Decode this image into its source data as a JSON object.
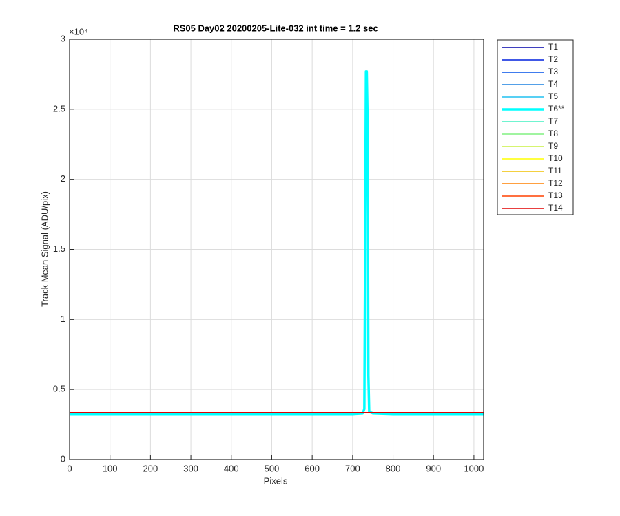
{
  "chart_data": {
    "type": "line",
    "title": "RS05 Day02 20200205-Lite-032 int time = 1.2 sec",
    "x_label": "Pixels",
    "y_label": "Track Mean Signal (ADU/pix)",
    "y_multiplier_label": "×10⁴",
    "xlim": [
      0,
      1024
    ],
    "ylim": [
      0,
      3
    ],
    "xticks": [
      0,
      100,
      200,
      300,
      400,
      500,
      600,
      700,
      800,
      900,
      1000
    ],
    "yticks": [
      0,
      0.5,
      1,
      1.5,
      2,
      2.5,
      3
    ],
    "grid": true,
    "legend": "outside-right",
    "x": [
      0,
      100,
      200,
      300,
      400,
      500,
      600,
      700,
      725,
      729,
      731,
      733,
      735,
      737,
      739,
      741,
      750,
      800,
      900,
      1024
    ],
    "series": [
      {
        "name": "T1",
        "color": "#0000aa",
        "line_width": 1.5,
        "values": [
          0.333,
          0.333,
          0.333,
          0.333,
          0.333,
          0.333,
          0.333,
          0.333,
          0.333,
          0.333,
          0.333,
          0.333,
          0.333,
          0.333,
          0.333,
          0.333,
          0.333,
          0.333,
          0.333,
          0.333
        ]
      },
      {
        "name": "T2",
        "color": "#0020dd",
        "line_width": 1.5,
        "values": [
          0.333,
          0.333,
          0.333,
          0.333,
          0.333,
          0.333,
          0.333,
          0.333,
          0.333,
          0.333,
          0.333,
          0.333,
          0.333,
          0.333,
          0.333,
          0.333,
          0.333,
          0.333,
          0.333,
          0.333
        ]
      },
      {
        "name": "T3",
        "color": "#0050e8",
        "line_width": 1.5,
        "values": [
          0.333,
          0.333,
          0.333,
          0.333,
          0.333,
          0.333,
          0.333,
          0.333,
          0.333,
          0.333,
          0.333,
          0.333,
          0.333,
          0.333,
          0.333,
          0.333,
          0.333,
          0.333,
          0.333,
          0.333
        ]
      },
      {
        "name": "T4",
        "color": "#1a80e0",
        "line_width": 1.5,
        "values": [
          0.333,
          0.333,
          0.333,
          0.333,
          0.333,
          0.333,
          0.333,
          0.333,
          0.333,
          0.333,
          0.333,
          0.333,
          0.333,
          0.333,
          0.333,
          0.333,
          0.333,
          0.333,
          0.333,
          0.333
        ]
      },
      {
        "name": "T5",
        "color": "#20c0f0",
        "line_width": 1.5,
        "values": [
          0.333,
          0.333,
          0.333,
          0.333,
          0.333,
          0.333,
          0.333,
          0.333,
          0.333,
          0.333,
          0.333,
          0.333,
          0.333,
          0.333,
          0.333,
          0.333,
          0.333,
          0.333,
          0.333,
          0.333
        ]
      },
      {
        "name": "T6**",
        "color": "#00ffff",
        "line_width": 3.5,
        "values": [
          0.325,
          0.325,
          0.325,
          0.325,
          0.325,
          0.325,
          0.325,
          0.325,
          0.33,
          0.36,
          1.5,
          2.77,
          2.77,
          2.4,
          0.6,
          0.34,
          0.33,
          0.325,
          0.325,
          0.325
        ]
      },
      {
        "name": "T7",
        "color": "#40f0c0",
        "line_width": 1.5,
        "values": [
          0.333,
          0.333,
          0.333,
          0.333,
          0.333,
          0.333,
          0.333,
          0.333,
          0.333,
          0.333,
          0.333,
          0.333,
          0.333,
          0.333,
          0.333,
          0.333,
          0.333,
          0.333,
          0.333,
          0.333
        ]
      },
      {
        "name": "T8",
        "color": "#80f080",
        "line_width": 1.5,
        "values": [
          0.333,
          0.333,
          0.333,
          0.333,
          0.333,
          0.333,
          0.333,
          0.333,
          0.333,
          0.333,
          0.333,
          0.333,
          0.333,
          0.333,
          0.333,
          0.333,
          0.333,
          0.333,
          0.333,
          0.333
        ]
      },
      {
        "name": "T9",
        "color": "#c8f040",
        "line_width": 1.5,
        "values": [
          0.333,
          0.333,
          0.333,
          0.333,
          0.333,
          0.333,
          0.333,
          0.333,
          0.333,
          0.333,
          0.333,
          0.333,
          0.333,
          0.333,
          0.333,
          0.333,
          0.333,
          0.333,
          0.333,
          0.333
        ]
      },
      {
        "name": "T10",
        "color": "#ffff00",
        "line_width": 1.5,
        "values": [
          0.333,
          0.333,
          0.333,
          0.333,
          0.333,
          0.333,
          0.333,
          0.333,
          0.333,
          0.333,
          0.333,
          0.333,
          0.333,
          0.333,
          0.333,
          0.333,
          0.333,
          0.333,
          0.333,
          0.333
        ]
      },
      {
        "name": "T11",
        "color": "#f0c000",
        "line_width": 1.5,
        "values": [
          0.333,
          0.333,
          0.333,
          0.333,
          0.333,
          0.333,
          0.333,
          0.333,
          0.333,
          0.333,
          0.333,
          0.333,
          0.333,
          0.333,
          0.333,
          0.333,
          0.333,
          0.333,
          0.333,
          0.333
        ]
      },
      {
        "name": "T12",
        "color": "#ff8000",
        "line_width": 1.5,
        "values": [
          0.333,
          0.333,
          0.333,
          0.333,
          0.333,
          0.333,
          0.333,
          0.333,
          0.333,
          0.333,
          0.333,
          0.333,
          0.333,
          0.333,
          0.333,
          0.333,
          0.333,
          0.333,
          0.333,
          0.333
        ]
      },
      {
        "name": "T13",
        "color": "#ff4000",
        "line_width": 1.5,
        "values": [
          0.335,
          0.335,
          0.335,
          0.335,
          0.335,
          0.335,
          0.335,
          0.335,
          0.335,
          0.335,
          0.335,
          0.335,
          0.335,
          0.335,
          0.335,
          0.335,
          0.335,
          0.335,
          0.335,
          0.335
        ]
      },
      {
        "name": "T14",
        "color": "#e00000",
        "line_width": 1.5,
        "values": [
          0.335,
          0.335,
          0.335,
          0.335,
          0.335,
          0.335,
          0.335,
          0.335,
          0.335,
          0.335,
          0.335,
          0.335,
          0.335,
          0.335,
          0.335,
          0.335,
          0.335,
          0.335,
          0.335,
          0.335
        ]
      }
    ]
  }
}
